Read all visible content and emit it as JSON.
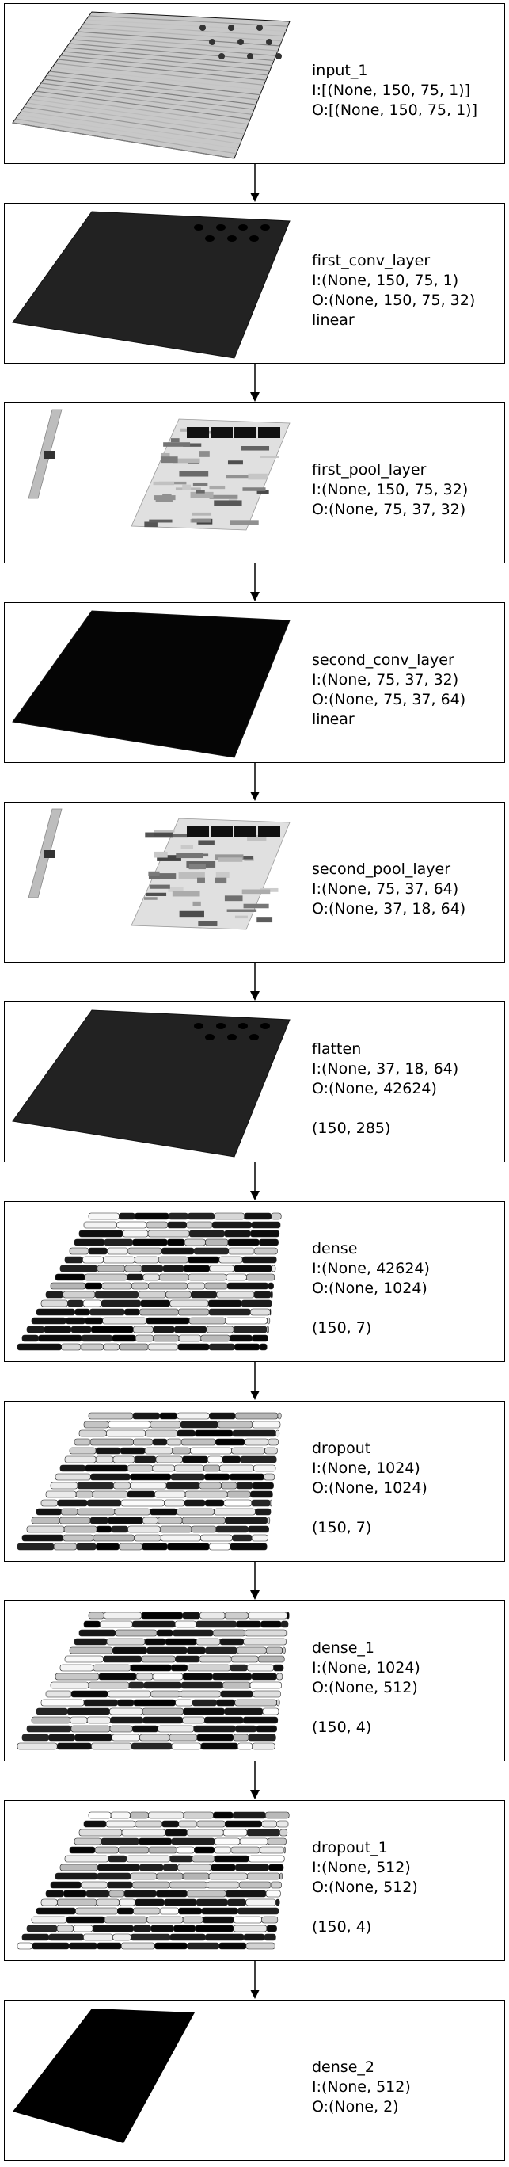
{
  "layers": [
    {
      "name": "input_1",
      "input_shape": "I:[(None, 150, 75, 1)]",
      "output_shape": "O:[(None, 150, 75, 1)]",
      "activation": "",
      "extra": "",
      "viz": "grid-gray"
    },
    {
      "name": "first_conv_layer",
      "input_shape": "I:(None, 150, 75, 1)",
      "output_shape": "O:(None, 150, 75, 32)",
      "activation": "linear",
      "extra": "",
      "viz": "dark-sheet"
    },
    {
      "name": "first_pool_layer",
      "input_shape": "I:(None, 150, 75, 32)",
      "output_shape": "O:(None, 75, 37, 32)",
      "activation": "",
      "extra": "",
      "viz": "pool"
    },
    {
      "name": "second_conv_layer",
      "input_shape": "I:(None, 75, 37, 32)",
      "output_shape": "O:(None, 75, 37, 64)",
      "activation": "linear",
      "extra": "",
      "viz": "black-sheet"
    },
    {
      "name": "second_pool_layer",
      "input_shape": "I:(None, 75, 37, 64)",
      "output_shape": "O:(None, 37, 18, 64)",
      "activation": "",
      "extra": "",
      "viz": "pool"
    },
    {
      "name": "flatten",
      "input_shape": "I:(None, 37, 18, 64)",
      "output_shape": "O:(None, 42624)",
      "activation": "",
      "extra": "(150, 285)",
      "viz": "dark-sheet"
    },
    {
      "name": "dense",
      "input_shape": "I:(None, 42624)",
      "output_shape": "O:(None, 1024)",
      "activation": "",
      "extra": "(150, 7)",
      "viz": "stripes"
    },
    {
      "name": "dropout",
      "input_shape": "I:(None, 1024)",
      "output_shape": "O:(None, 1024)",
      "activation": "",
      "extra": "(150, 7)",
      "viz": "stripes"
    },
    {
      "name": "dense_1",
      "input_shape": "I:(None, 1024)",
      "output_shape": "O:(None, 512)",
      "activation": "",
      "extra": "(150, 4)",
      "viz": "stripes-short"
    },
    {
      "name": "dropout_1",
      "input_shape": "I:(None, 512)",
      "output_shape": "O:(None, 512)",
      "activation": "",
      "extra": "(150, 4)",
      "viz": "stripes-short"
    },
    {
      "name": "dense_2",
      "input_shape": "I:(None, 512)",
      "output_shape": "O:(None, 2)",
      "activation": "",
      "extra": "",
      "viz": "narrow-black"
    }
  ]
}
